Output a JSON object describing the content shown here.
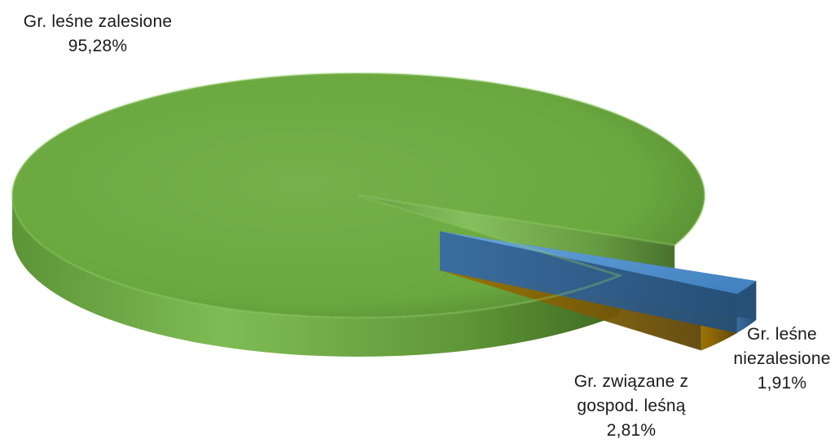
{
  "chart_data": {
    "type": "pie",
    "style": "3d-exploded",
    "title": "",
    "slices": [
      {
        "label_lines": [
          "Gr. leśne zalesione"
        ],
        "value": 95.28,
        "value_text": "95,28%",
        "color": "#70AD47"
      },
      {
        "label_lines": [
          "Gr. leśne",
          "niezalesione"
        ],
        "value": 1.91,
        "value_text": "1,91%",
        "color": "#5B9BD5"
      },
      {
        "label_lines": [
          "Gr. związane z",
          "gospod. leśną"
        ],
        "value": 2.81,
        "value_text": "2,81%",
        "color": "#FFC000"
      }
    ]
  }
}
